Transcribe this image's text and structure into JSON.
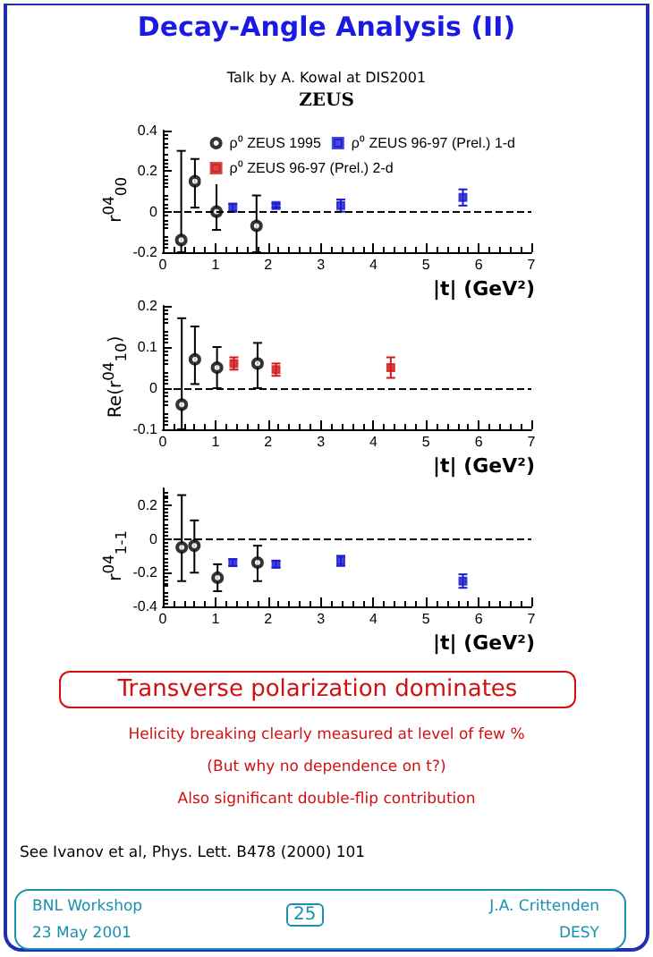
{
  "chart_data": [
    {
      "type": "scatter",
      "title": "Decay-Angle Analysis (II)",
      "subtitle": "Talk by A. Kowal at DIS2001",
      "annotations": [
        "ZEUS"
      ],
      "xlabel": "|t| (GeV²)",
      "ylabel": "r$^{04}$$_{00}$",
      "xlim": [
        0,
        7
      ],
      "xticks": [
        0,
        1,
        2,
        3,
        4,
        5,
        6,
        7
      ],
      "ylim": [
        -0.2,
        0.4
      ],
      "yticks": [
        -0.2,
        0,
        0.2,
        0.4
      ],
      "grid": false,
      "legend": "top",
      "ref_lines": [
        {
          "axis": "y",
          "value": 0,
          "line_style": "dashed",
          "color": "#000000"
        }
      ],
      "series": [
        {
          "name": "ρ⁰ ZEUS 1995",
          "color": "#000000",
          "marker": "circle",
          "x": [
            0.35,
            0.61,
            1.02,
            1.78
          ],
          "values": [
            -0.14,
            0.15,
            0.0,
            -0.07
          ],
          "errors": [
            [
              -0.2,
              0.3
            ],
            [
              0.02,
              0.26
            ],
            [
              -0.09,
              0.15
            ],
            [
              -0.2,
              0.08
            ]
          ]
        },
        {
          "name": "ρ⁰ ZEUS 96-97 (Prel.) 1-d",
          "color": "#1a1ad0",
          "marker": "square",
          "x": [
            1.33,
            2.15,
            3.38,
            5.7
          ],
          "values": [
            0.02,
            0.03,
            0.03,
            0.07
          ],
          "errors": [
            0.02,
            0.01,
            0.03,
            0.04
          ]
        },
        {
          "name": "ρ⁰ ZEUS 96-97 (Prel.) 2-d",
          "color": "#d01a1a",
          "marker": "square"
        }
      ]
    },
    {
      "type": "scatter",
      "xlabel": "|t| (GeV²)",
      "ylabel": "Re(r$^{04}$$_{10}$)",
      "xlim": [
        0,
        7
      ],
      "xticks": [
        0,
        1,
        2,
        3,
        4,
        5,
        6,
        7
      ],
      "ylim": [
        -0.1,
        0.2
      ],
      "yticks": [
        -0.1,
        0,
        0.1,
        0.2
      ],
      "grid": false,
      "ref_lines": [
        {
          "axis": "y",
          "value": 0,
          "line_style": "dashed",
          "color": "#000000"
        }
      ],
      "series": [
        {
          "color": "#000000",
          "marker": "circle",
          "x": [
            0.36,
            0.61,
            1.03,
            1.8
          ],
          "values": [
            -0.04,
            0.07,
            0.05,
            0.06
          ],
          "errors": [
            [
              -0.1,
              0.17
            ],
            [
              0.01,
              0.15
            ],
            [
              0.0,
              0.1
            ],
            [
              0.0,
              0.11
            ]
          ]
        },
        {
          "color": "#d01a1a",
          "marker": "square",
          "x": [
            1.35,
            2.15,
            4.33
          ],
          "values": [
            0.06,
            0.045,
            0.05
          ],
          "errors": [
            0.015,
            0.015,
            0.025
          ]
        }
      ]
    },
    {
      "type": "scatter",
      "xlabel": "|t| (GeV²)",
      "ylabel": "r$^{04}$$_{1-1}$",
      "xlim": [
        0,
        7
      ],
      "xticks": [
        0,
        1,
        2,
        3,
        4,
        5,
        6,
        7
      ],
      "ylim": [
        -0.4,
        0.3
      ],
      "yticks": [
        -0.4,
        -0.2,
        0,
        0.2
      ],
      "grid": false,
      "ref_lines": [
        {
          "axis": "y",
          "value": 0,
          "line_style": "dashed",
          "color": "#000000"
        }
      ],
      "annotations": [
        "Transverse polarization dominates",
        "Helicity breaking clearly measured at level of few %",
        "(But why no dependence on t?)",
        "Also significant double-flip contribution",
        "See Ivanov et al, Phys. Lett. B478 (2000) 101",
        "BNL Workshop",
        "23 May 2001",
        "25",
        "J.A. Crittenden",
        "DESY"
      ],
      "series": [
        {
          "color": "#000000",
          "marker": "circle",
          "x": [
            0.36,
            0.6,
            1.04,
            1.8
          ],
          "values": [
            -0.05,
            -0.04,
            -0.23,
            -0.14
          ],
          "errors": [
            [
              -0.25,
              0.26
            ],
            [
              -0.2,
              0.11
            ],
            [
              -0.31,
              -0.15
            ],
            [
              -0.25,
              -0.04
            ]
          ]
        },
        {
          "color": "#1a1ad0",
          "marker": "square",
          "x": [
            1.33,
            2.15,
            3.38,
            5.7
          ],
          "values": [
            -0.14,
            -0.15,
            -0.13,
            -0.25
          ],
          "errors": [
            0.02,
            0.02,
            0.03,
            0.04
          ]
        }
      ]
    }
  ]
}
